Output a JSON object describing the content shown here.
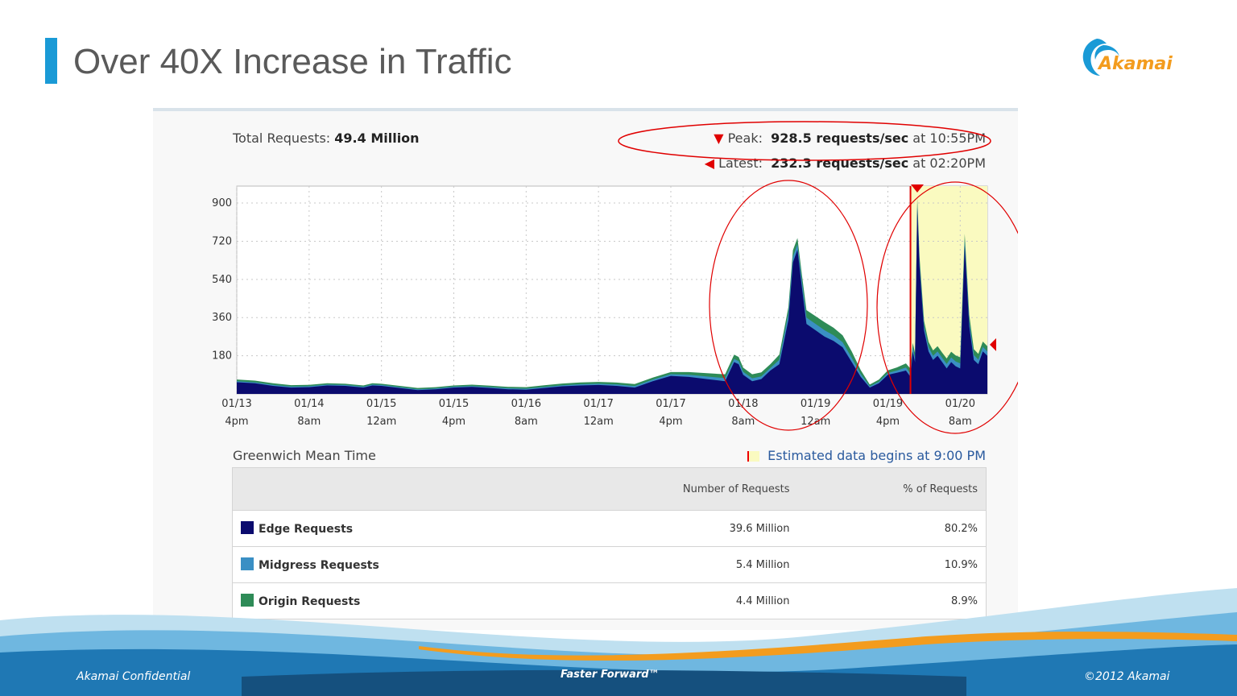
{
  "slide": {
    "title": "Over 40X Increase in Traffic",
    "logo_text": "Akamai",
    "footer_left": "Akamai Confidential",
    "footer_center": "Faster Forward™",
    "footer_right": "©2012 Akamai"
  },
  "stats": {
    "total_label": "Total Requests:",
    "total_value": "49.4 Million",
    "peak_label": "Peak:",
    "peak_value": "928.5 requests/sec",
    "peak_time": "at 10:55PM",
    "latest_label": "Latest:",
    "latest_value": "232.3 requests/sec",
    "latest_time": "at 02:20PM"
  },
  "timezone_label": "Greenwich Mean Time",
  "estimate_label": "Estimated data begins at 9:00 PM",
  "legend": {
    "headers": [
      "",
      "Number of Requests",
      "% of Requests"
    ],
    "rows": [
      {
        "name": "Edge Requests",
        "count": "39.6 Million",
        "pct": "80.2%",
        "color": "#0b0b6e"
      },
      {
        "name": "Midgress Requests",
        "count": "5.4 Million",
        "pct": "10.9%",
        "color": "#3a8fc4"
      },
      {
        "name": "Origin Requests",
        "count": "4.4 Million",
        "pct": "8.9%",
        "color": "#2e8b57"
      }
    ]
  },
  "colors": {
    "accent": "#1a9ad6",
    "edge": "#0b0b6e",
    "midgress": "#3a8fc4",
    "origin": "#2e8b57",
    "estimate_bg": "#fafac0",
    "annotation": "#e00000"
  },
  "chart_data": {
    "type": "area",
    "title": "",
    "xlabel": "",
    "ylabel": "",
    "ylim": [
      0,
      980
    ],
    "yticks": [
      180,
      360,
      540,
      720,
      900
    ],
    "xtick_labels": [
      [
        "01/13",
        "4pm"
      ],
      [
        "01/14",
        "8am"
      ],
      [
        "01/15",
        "12am"
      ],
      [
        "01/15",
        "4pm"
      ],
      [
        "01/16",
        "8am"
      ],
      [
        "01/17",
        "12am"
      ],
      [
        "01/17",
        "4pm"
      ],
      [
        "01/18",
        "8am"
      ],
      [
        "01/19",
        "12am"
      ],
      [
        "01/19",
        "4pm"
      ],
      [
        "01/20",
        "8am"
      ]
    ],
    "x_hours": [
      0,
      16,
      32,
      48,
      64,
      80,
      96,
      112,
      128,
      144,
      160
    ],
    "x_range_hours": [
      0,
      166
    ],
    "estimate_start_hours": 149,
    "peak": {
      "value": 928.5,
      "time": "10:55PM"
    },
    "latest": {
      "value": 232.3,
      "time": "02:20PM"
    },
    "grid": true,
    "series": [
      {
        "name": "Edge Requests",
        "values": [
          [
            0,
            55
          ],
          [
            4,
            50
          ],
          [
            8,
            38
          ],
          [
            12,
            30
          ],
          [
            16,
            32
          ],
          [
            20,
            40
          ],
          [
            24,
            38
          ],
          [
            28,
            30
          ],
          [
            30,
            40
          ],
          [
            32,
            38
          ],
          [
            36,
            28
          ],
          [
            40,
            18
          ],
          [
            44,
            22
          ],
          [
            48,
            30
          ],
          [
            52,
            33
          ],
          [
            56,
            28
          ],
          [
            60,
            22
          ],
          [
            64,
            20
          ],
          [
            68,
            28
          ],
          [
            72,
            36
          ],
          [
            76,
            40
          ],
          [
            80,
            42
          ],
          [
            84,
            38
          ],
          [
            88,
            30
          ],
          [
            92,
            60
          ],
          [
            96,
            85
          ],
          [
            100,
            80
          ],
          [
            104,
            70
          ],
          [
            108,
            60
          ],
          [
            110,
            150
          ],
          [
            111,
            140
          ],
          [
            112,
            90
          ],
          [
            114,
            60
          ],
          [
            116,
            70
          ],
          [
            118,
            110
          ],
          [
            120,
            140
          ],
          [
            122,
            350
          ],
          [
            123,
            620
          ],
          [
            124,
            680
          ],
          [
            125,
            500
          ],
          [
            126,
            330
          ],
          [
            128,
            300
          ],
          [
            130,
            270
          ],
          [
            132,
            250
          ],
          [
            134,
            220
          ],
          [
            136,
            150
          ],
          [
            138,
            80
          ],
          [
            140,
            30
          ],
          [
            142,
            50
          ],
          [
            144,
            90
          ],
          [
            146,
            100
          ],
          [
            148,
            110
          ],
          [
            149,
            80
          ],
          [
            149.5,
            200
          ],
          [
            150,
            150
          ],
          [
            150.5,
            880
          ],
          [
            151,
            600
          ],
          [
            152,
            300
          ],
          [
            153,
            200
          ],
          [
            154,
            160
          ],
          [
            155,
            180
          ],
          [
            156,
            150
          ],
          [
            157,
            120
          ],
          [
            158,
            150
          ],
          [
            159,
            130
          ],
          [
            160,
            120
          ],
          [
            161,
            700
          ],
          [
            162,
            320
          ],
          [
            163,
            160
          ],
          [
            164,
            140
          ],
          [
            165,
            200
          ],
          [
            166,
            180
          ]
        ]
      },
      {
        "name": "Midgress Requests",
        "values": [
          [
            0,
            5
          ],
          [
            24,
            4
          ],
          [
            48,
            4
          ],
          [
            72,
            5
          ],
          [
            96,
            8
          ],
          [
            110,
            15
          ],
          [
            118,
            12
          ],
          [
            122,
            30
          ],
          [
            124,
            25
          ],
          [
            126,
            30
          ],
          [
            130,
            30
          ],
          [
            136,
            20
          ],
          [
            140,
            6
          ],
          [
            146,
            10
          ],
          [
            150.5,
            20
          ],
          [
            156,
            20
          ],
          [
            161,
            25
          ],
          [
            166,
            20
          ]
        ]
      },
      {
        "name": "Origin Requests",
        "values": [
          [
            0,
            8
          ],
          [
            24,
            6
          ],
          [
            48,
            6
          ],
          [
            72,
            8
          ],
          [
            96,
            10
          ],
          [
            110,
            20
          ],
          [
            118,
            18
          ],
          [
            122,
            30
          ],
          [
            124,
            30
          ],
          [
            126,
            35
          ],
          [
            130,
            38
          ],
          [
            136,
            30
          ],
          [
            140,
            8
          ],
          [
            146,
            15
          ],
          [
            150.5,
            25
          ],
          [
            156,
            25
          ],
          [
            161,
            30
          ],
          [
            166,
            25
          ]
        ]
      }
    ]
  }
}
